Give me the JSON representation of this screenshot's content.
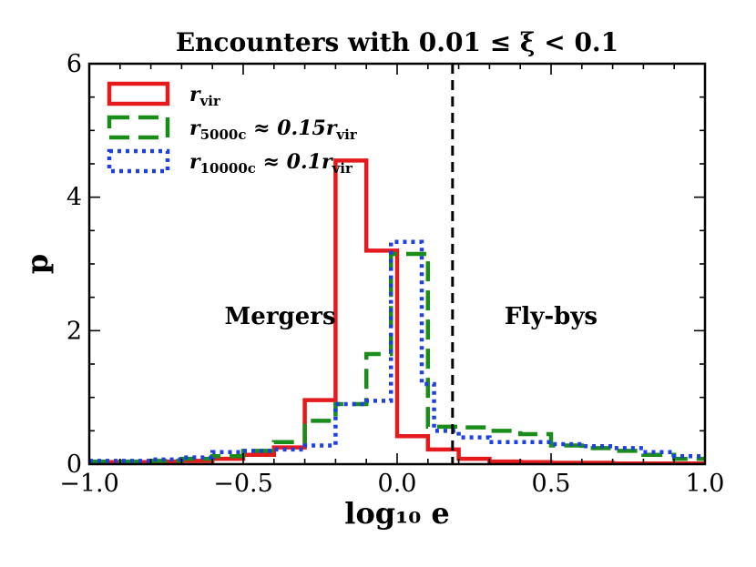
{
  "chart_data": {
    "type": "line",
    "subtype": "step-histogram",
    "title": "Encounters with 0.01 ≤ ξ < 0.1",
    "xlabel": "log₁₀ e",
    "ylabel": "p",
    "xlim": [
      -1.0,
      1.0
    ],
    "ylim": [
      0,
      6.0
    ],
    "xticks": [
      -1.0,
      -0.5,
      0.0,
      0.5,
      1.0
    ],
    "xtick_labels": [
      "−1.0",
      "−0.5",
      "0.0",
      "0.5",
      "1.0"
    ],
    "yticks": [
      0,
      2,
      4,
      6
    ],
    "ytick_labels": [
      "0",
      "2",
      "4",
      "6"
    ],
    "grid": false,
    "legend_position": "top-left",
    "vline": {
      "x": 0.18,
      "style": "dashed",
      "color": "#000000"
    },
    "annotations": [
      {
        "text": "Mergers",
        "x": -0.38,
        "y": 2.1
      },
      {
        "text": "Fly-bys",
        "x": 0.5,
        "y": 2.1
      }
    ],
    "bin_edges": [
      -1.0,
      -0.9,
      -0.8,
      -0.7,
      -0.6,
      -0.5,
      -0.4,
      -0.3,
      -0.2,
      -0.1,
      0.0,
      0.1,
      0.2,
      0.3,
      0.4,
      0.5,
      0.6,
      0.7,
      0.8,
      0.9,
      1.0
    ],
    "series": [
      {
        "name": "r_vir",
        "label_main": "r",
        "label_sub": "vir",
        "label_rest": "",
        "color": "#e41a1c",
        "style": "solid",
        "edges": [
          -1.0,
          -0.9,
          -0.8,
          -0.7,
          -0.6,
          -0.5,
          -0.4,
          -0.3,
          -0.2,
          -0.1,
          0.0,
          0.1,
          0.2,
          0.3,
          0.4,
          0.5,
          0.6,
          0.7,
          0.8,
          0.9,
          1.0
        ],
        "values": [
          0.03,
          0.03,
          0.04,
          0.05,
          0.08,
          0.14,
          0.25,
          0.96,
          4.55,
          3.2,
          0.42,
          0.22,
          0.08,
          0.04,
          0.03,
          0.02,
          0.02,
          0.01,
          0.01,
          0.01
        ]
      },
      {
        "name": "r_5000c ≈ 0.15 r_vir",
        "label_main": "r",
        "label_sub": "5000c",
        "label_rest": " ≈ 0.15r",
        "label_sub2": "vir",
        "color": "#1a8c1a",
        "style": "dashed",
        "edges": [
          -1.0,
          -0.9,
          -0.8,
          -0.7,
          -0.6,
          -0.5,
          -0.4,
          -0.3,
          -0.2,
          -0.1,
          -0.02,
          0.1,
          0.2,
          0.3,
          0.4,
          0.5,
          0.6,
          0.7,
          0.8,
          0.9,
          1.0
        ],
        "values": [
          0.04,
          0.04,
          0.05,
          0.08,
          0.12,
          0.2,
          0.33,
          0.65,
          0.9,
          1.65,
          3.15,
          0.56,
          0.55,
          0.5,
          0.45,
          0.28,
          0.24,
          0.2,
          0.14,
          0.08
        ]
      },
      {
        "name": "r_10000c ≈ 0.1 r_vir",
        "label_main": "r",
        "label_sub": "10000c",
        "label_rest": " ≈ 0.1r",
        "label_sub2": "vir",
        "color": "#1f3fe0",
        "style": "dotted",
        "edges": [
          -1.0,
          -0.9,
          -0.8,
          -0.7,
          -0.6,
          -0.5,
          -0.4,
          -0.3,
          -0.2,
          -0.1,
          -0.02,
          0.08,
          0.12,
          0.2,
          0.3,
          0.4,
          0.5,
          0.6,
          0.7,
          0.8,
          0.9,
          1.0
        ],
        "values": [
          0.05,
          0.05,
          0.07,
          0.1,
          0.18,
          0.2,
          0.22,
          0.28,
          0.9,
          0.95,
          3.33,
          1.2,
          0.5,
          0.4,
          0.33,
          0.33,
          0.3,
          0.27,
          0.24,
          0.18,
          0.12
        ]
      }
    ]
  }
}
